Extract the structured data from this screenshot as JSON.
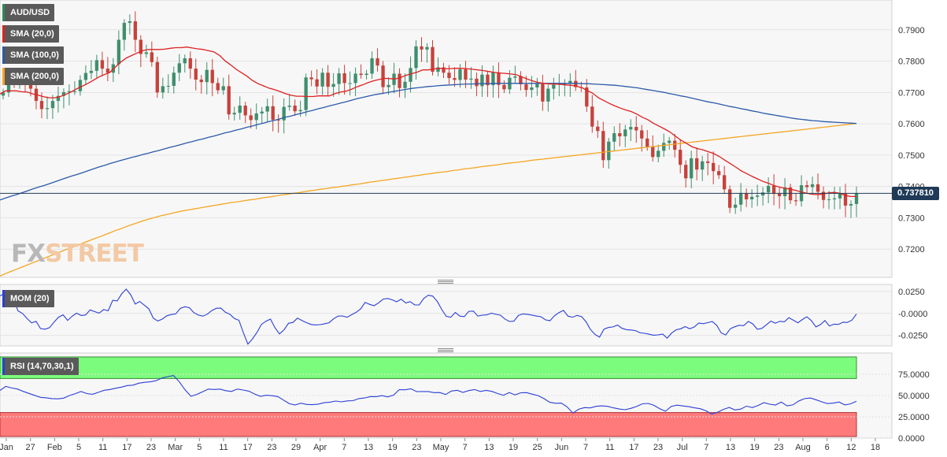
{
  "chart_data": [
    {
      "type": "candlestick",
      "legend": [
        {
          "label": "AUD/USD",
          "color": "#2e8b57"
        },
        {
          "label": "SMA (20,0)",
          "color": "#e02020"
        },
        {
          "label": "SMA (100,0)",
          "color": "#2b5aa8"
        },
        {
          "label": "SMA (200,0)",
          "color": "#f5a623"
        }
      ],
      "ylim": [
        0.711,
        0.7995
      ],
      "y_ticks": [
        "0.7900",
        "0.7800",
        "0.7700",
        "0.7600",
        "0.7500",
        "0.7400",
        "0.7300",
        "0.7200"
      ],
      "last_price": "0.737810",
      "x_ticks": [
        "Jan",
        "27",
        "Feb",
        "5",
        "11",
        "17",
        "23",
        "Mar",
        "5",
        "11",
        "17",
        "23",
        "29",
        "Apr",
        "7",
        "13",
        "19",
        "23",
        "May",
        "7",
        "13",
        "19",
        "25",
        "Jun",
        "7",
        "11",
        "17",
        "23",
        "Jul",
        "7",
        "13",
        "19",
        "23",
        "Aug",
        "6",
        "12",
        "18"
      ],
      "closes": [
        0.77,
        0.7733,
        0.7731,
        0.7735,
        0.7724,
        0.7712,
        0.7673,
        0.7647,
        0.765,
        0.7673,
        0.7689,
        0.7701,
        0.7704,
        0.7704,
        0.774,
        0.7762,
        0.7769,
        0.7803,
        0.7776,
        0.7763,
        0.779,
        0.7868,
        0.7922,
        0.7927,
        0.7868,
        0.7823,
        0.7828,
        0.7797,
        0.77,
        0.772,
        0.7721,
        0.7763,
        0.7793,
        0.7809,
        0.7776,
        0.7741,
        0.7733,
        0.7772,
        0.773,
        0.7707,
        0.772,
        0.763,
        0.7635,
        0.7658,
        0.7627,
        0.7612,
        0.7633,
        0.7639,
        0.7656,
        0.7613,
        0.7611,
        0.7654,
        0.7658,
        0.764,
        0.7644,
        0.7748,
        0.7742,
        0.7719,
        0.7763,
        0.7718,
        0.7727,
        0.7761,
        0.773,
        0.773,
        0.776,
        0.7756,
        0.776,
        0.7809,
        0.7786,
        0.7717,
        0.7724,
        0.776,
        0.7714,
        0.7734,
        0.7778,
        0.7847,
        0.7837,
        0.7845,
        0.7766,
        0.778,
        0.7763,
        0.7746,
        0.774,
        0.7774,
        0.7741,
        0.7744,
        0.772,
        0.7757,
        0.7723,
        0.7764,
        0.7724,
        0.771,
        0.7747,
        0.7751,
        0.7726,
        0.7708,
        0.7716,
        0.7727,
        0.7671,
        0.7712,
        0.7725,
        0.7727,
        0.7728,
        0.7737,
        0.7717,
        0.7716,
        0.7655,
        0.7591,
        0.7577,
        0.7484,
        0.7543,
        0.757,
        0.756,
        0.7582,
        0.759,
        0.7579,
        0.7553,
        0.7526,
        0.7494,
        0.7514,
        0.7539,
        0.7546,
        0.7517,
        0.7469,
        0.7426,
        0.749,
        0.7454,
        0.748,
        0.7475,
        0.7449,
        0.7436,
        0.7391,
        0.7332,
        0.7342,
        0.7379,
        0.7359,
        0.7367,
        0.7371,
        0.7381,
        0.7402,
        0.7377,
        0.7369,
        0.7397,
        0.7356,
        0.7353,
        0.7404,
        0.7398,
        0.7407,
        0.7383,
        0.7357,
        0.7359,
        0.7362,
        0.7379,
        0.7339,
        0.7344,
        0.7378
      ],
      "sma20": [
        0.7695,
        0.7705,
        0.7705,
        0.7705,
        0.7702,
        0.7701,
        0.7695,
        0.7691,
        0.7686,
        0.7683,
        0.7683,
        0.7687,
        0.7694,
        0.7702,
        0.7712,
        0.772,
        0.7729,
        0.7739,
        0.7749,
        0.7757,
        0.7764,
        0.7781,
        0.7797,
        0.781,
        0.7818,
        0.7826,
        0.7833,
        0.7837,
        0.7837,
        0.7837,
        0.7838,
        0.7841,
        0.7843,
        0.7843,
        0.7845,
        0.7842,
        0.7839,
        0.7837,
        0.7833,
        0.7829,
        0.7818,
        0.7801,
        0.7788,
        0.7774,
        0.7763,
        0.7752,
        0.7738,
        0.7728,
        0.7721,
        0.7714,
        0.7709,
        0.7703,
        0.7696,
        0.7691,
        0.7688,
        0.7688,
        0.7687,
        0.7687,
        0.7689,
        0.7689,
        0.7689,
        0.7696,
        0.7701,
        0.7704,
        0.771,
        0.7718,
        0.7724,
        0.7731,
        0.7737,
        0.7741,
        0.7745,
        0.7744,
        0.7743,
        0.7748,
        0.7755,
        0.776,
        0.7765,
        0.7772,
        0.7772,
        0.7775,
        0.7777,
        0.7776,
        0.7776,
        0.7777,
        0.7777,
        0.7776,
        0.7774,
        0.7772,
        0.777,
        0.7767,
        0.7764,
        0.7762,
        0.7761,
        0.7759,
        0.7757,
        0.775,
        0.7743,
        0.7737,
        0.7732,
        0.7729,
        0.7727,
        0.7727,
        0.7726,
        0.7724,
        0.7723,
        0.772,
        0.7715,
        0.7706,
        0.7697,
        0.7683,
        0.7674,
        0.7665,
        0.7657,
        0.765,
        0.7644,
        0.7639,
        0.7631,
        0.7621,
        0.7613,
        0.7602,
        0.7593,
        0.7584,
        0.7574,
        0.7561,
        0.7548,
        0.7538,
        0.7527,
        0.7521,
        0.7517,
        0.7511,
        0.7505,
        0.7496,
        0.7484,
        0.7473,
        0.7462,
        0.745,
        0.7441,
        0.7432,
        0.7424,
        0.7416,
        0.741,
        0.7403,
        0.7398,
        0.7394,
        0.7391,
        0.7387,
        0.7382,
        0.7378,
        0.7375,
        0.7374,
        0.7376,
        0.738,
        0.7381,
        0.7378,
        0.7371,
        0.7368,
        0.7368
      ],
      "sma100": [
        0.7357,
        0.7363,
        0.7369,
        0.7374,
        0.738,
        0.7386,
        0.7392,
        0.7398,
        0.7403,
        0.7409,
        0.7415,
        0.7421,
        0.7427,
        0.7433,
        0.7438,
        0.7444,
        0.745,
        0.7456,
        0.7462,
        0.7467,
        0.7473,
        0.7478,
        0.7483,
        0.7488,
        0.7493,
        0.7497,
        0.7502,
        0.7506,
        0.7511,
        0.7515,
        0.752,
        0.7525,
        0.7529,
        0.7534,
        0.7539,
        0.7543,
        0.7548,
        0.7552,
        0.7557,
        0.7561,
        0.7566,
        0.7571,
        0.7575,
        0.758,
        0.7584,
        0.7589,
        0.7593,
        0.7598,
        0.7602,
        0.7607,
        0.7611,
        0.7616,
        0.7621,
        0.7625,
        0.763,
        0.7634,
        0.7639,
        0.7643,
        0.7648,
        0.7652,
        0.7657,
        0.7661,
        0.7666,
        0.767,
        0.7675,
        0.768,
        0.7684,
        0.7688,
        0.7692,
        0.7695,
        0.7698,
        0.7701,
        0.7704,
        0.7707,
        0.771,
        0.7713,
        0.7715,
        0.7717,
        0.7719,
        0.772,
        0.7722,
        0.7723,
        0.7724,
        0.7725,
        0.7726,
        0.7727,
        0.7727,
        0.7728,
        0.7728,
        0.7728,
        0.7729,
        0.7729,
        0.7729,
        0.7729,
        0.7729,
        0.7729,
        0.7729,
        0.7729,
        0.7729,
        0.7729,
        0.7729,
        0.7729,
        0.7729,
        0.7729,
        0.7729,
        0.7729,
        0.7728,
        0.7728,
        0.7727,
        0.7726,
        0.7725,
        0.7724,
        0.7723,
        0.7721,
        0.7719,
        0.7717,
        0.7715,
        0.7712,
        0.7709,
        0.7706,
        0.7703,
        0.77,
        0.7696,
        0.7693,
        0.7689,
        0.7686,
        0.7682,
        0.7678,
        0.7674,
        0.767,
        0.7667,
        0.7663,
        0.7659,
        0.7655,
        0.7652,
        0.7648,
        0.7645,
        0.7641,
        0.7638,
        0.7634,
        0.7631,
        0.7628,
        0.7625,
        0.7622,
        0.7619,
        0.7616,
        0.7614,
        0.7612,
        0.761,
        0.7609,
        0.7607,
        0.7606,
        0.7605,
        0.7604,
        0.7603,
        0.7602,
        0.7601
      ],
      "sma200": [
        0.7114,
        0.7122,
        0.7129,
        0.7136,
        0.7143,
        0.715,
        0.7157,
        0.7164,
        0.7171,
        0.7178,
        0.7185,
        0.7192,
        0.7199,
        0.7205,
        0.7212,
        0.7219,
        0.7226,
        0.7233,
        0.7239,
        0.7246,
        0.7253,
        0.726,
        0.7266,
        0.7273,
        0.7279,
        0.7285,
        0.7291,
        0.7296,
        0.7301,
        0.7306,
        0.731,
        0.7314,
        0.7318,
        0.7322,
        0.7325,
        0.7328,
        0.7331,
        0.7334,
        0.7337,
        0.734,
        0.7343,
        0.7346,
        0.7349,
        0.7351,
        0.7354,
        0.7357,
        0.7359,
        0.7362,
        0.7365,
        0.7367,
        0.737,
        0.7373,
        0.7375,
        0.7378,
        0.738,
        0.7383,
        0.7386,
        0.7388,
        0.7391,
        0.7393,
        0.7396,
        0.7398,
        0.7401,
        0.7403,
        0.7406,
        0.7408,
        0.7411,
        0.7414,
        0.7416,
        0.7419,
        0.7421,
        0.7424,
        0.7426,
        0.7429,
        0.7431,
        0.7434,
        0.7436,
        0.7439,
        0.7441,
        0.7444,
        0.7446,
        0.7448,
        0.7451,
        0.7453,
        0.7456,
        0.7458,
        0.746,
        0.7463,
        0.7465,
        0.7467,
        0.7469,
        0.7472,
        0.7474,
        0.7476,
        0.7478,
        0.748,
        0.7483,
        0.7485,
        0.7487,
        0.7489,
        0.7491,
        0.7493,
        0.7495,
        0.7497,
        0.7499,
        0.7501,
        0.7503,
        0.7505,
        0.7507,
        0.7509,
        0.7511,
        0.7513,
        0.7515,
        0.7517,
        0.7519,
        0.7521,
        0.7523,
        0.7525,
        0.7527,
        0.7529,
        0.7531,
        0.7533,
        0.7535,
        0.7537,
        0.7539,
        0.7541,
        0.7543,
        0.7545,
        0.7547,
        0.7549,
        0.7551,
        0.7553,
        0.7555,
        0.7557,
        0.7559,
        0.7561,
        0.7563,
        0.7565,
        0.7567,
        0.7569,
        0.7571,
        0.7573,
        0.7575,
        0.7577,
        0.7579,
        0.7581,
        0.7583,
        0.7585,
        0.7587,
        0.7589,
        0.7591,
        0.7593,
        0.7595,
        0.7597,
        0.7599,
        0.7601
      ]
    },
    {
      "type": "line",
      "legend": [
        {
          "label": "MOM (20)",
          "color": "#2b3fd6"
        }
      ],
      "ylim": [
        -0.037,
        0.033
      ],
      "y_ticks": [
        "0.0250",
        "-0.0000",
        "-0.0250"
      ],
      "values": [
        0.0199,
        0.0229,
        0.0211,
        0.0153,
        0.0029,
        0.0,
        -0.0059,
        -0.0108,
        -0.009,
        -0.0173,
        -0.018,
        -0.0162,
        -0.0098,
        -0.0042,
        -0.0016,
        -0.0079,
        -0.0033,
        0.0003,
        -0.0024,
        -0.0017,
        0.004,
        0.002,
        0.0003,
        0.0044,
        0.003,
        0.015,
        0.0142,
        0.0223,
        0.0277,
        0.0212,
        0.0107,
        0.0136,
        0.0095,
        0.0053,
        -0.0053,
        -0.0086,
        -0.0065,
        -0.0027,
        -0.0013,
        -0.0005,
        0.0057,
        0.0076,
        0.0065,
        0.001,
        -0.0019,
        -0.0031,
        -0.0008,
        0.0033,
        0.0059,
        0.006,
        0.0013,
        -0.0009,
        -0.0059,
        -0.0078,
        -0.0221,
        -0.0349,
        -0.029,
        -0.0217,
        -0.0125,
        -0.0088,
        -0.0065,
        -0.0164,
        -0.0234,
        -0.0187,
        -0.0112,
        -0.0103,
        -0.0053,
        -0.0082,
        -0.0105,
        -0.0126,
        -0.0131,
        -0.0128,
        -0.0118,
        -0.0106,
        -0.0062,
        -0.0031,
        -0.0029,
        -0.0044,
        -0.0015,
        0.0012,
        0.0051,
        0.0125,
        0.0103,
        0.0088,
        0.0121,
        0.0163,
        0.017,
        0.0155,
        0.0133,
        0.0162,
        0.0119,
        0.0134,
        0.0098,
        0.0097,
        0.017,
        0.0207,
        0.0197,
        0.0137,
        0.0044,
        -0.0033,
        -0.0044,
        0.0011,
        -0.0031,
        -0.0036,
        0.0024,
        0.0027,
        -0.0031,
        -0.002,
        -0.0016,
        0.0002,
        -0.001,
        -0.002,
        -0.0063,
        -0.0092,
        -0.0088,
        -0.0024,
        -0.0006,
        -0.001,
        -0.0019,
        -0.003,
        -0.0038,
        -0.0073,
        -0.0084,
        -0.0027,
        0.001,
        0.0035,
        -0.0031,
        -0.0043,
        -0.0023,
        -0.0035,
        -0.0094,
        -0.0183,
        -0.024,
        -0.027,
        -0.0179,
        -0.016,
        -0.0154,
        -0.0132,
        -0.017,
        -0.0185,
        -0.0189,
        -0.0196,
        -0.0221,
        -0.0226,
        -0.0237,
        -0.0248,
        -0.0244,
        -0.0235,
        -0.0282,
        -0.0224,
        -0.0186,
        -0.0175,
        -0.015,
        -0.0175,
        -0.0155,
        -0.011,
        -0.0117,
        -0.0105,
        -0.0092,
        -0.0136,
        -0.0223,
        -0.0245,
        -0.0175,
        -0.0152,
        -0.0135,
        -0.0139,
        -0.0091,
        -0.012,
        -0.0181,
        -0.0171,
        -0.013,
        -0.0087,
        -0.0111,
        -0.009,
        -0.0095,
        -0.0049,
        -0.0077,
        -0.0107,
        -0.0069,
        -0.0038,
        -0.0082,
        -0.0154,
        -0.0128,
        -0.0081,
        -0.0143,
        -0.0122,
        -0.0125,
        -0.01,
        -0.0103,
        -0.0076,
        -0.0007
      ]
    },
    {
      "type": "line",
      "legend": [
        {
          "label": "RSI (14,70,30,1)",
          "color": "#2b3fd6"
        }
      ],
      "ylim": [
        0,
        100
      ],
      "y_ticks": [
        "75.0000",
        "50.0000",
        "25.0000",
        "0.0000"
      ],
      "overbought": 70,
      "oversold": 30,
      "zone_colors": {
        "overbought": "#7cfc7c",
        "oversold": "#ff7b7b"
      },
      "values": [
        56.0,
        60.7,
        58.9,
        57.7,
        54.9,
        52.5,
        50.2,
        47.9,
        47.3,
        46.4,
        46.1,
        46.9,
        50.0,
        52.2,
        54.8,
        52.3,
        51.5,
        53.8,
        56.2,
        57.1,
        58.6,
        59.9,
        61.8,
        62.2,
        64.5,
        65.6,
        66.1,
        67.5,
        70.6,
        72.2,
        73.5,
        65.9,
        56.6,
        49.2,
        51.3,
        54.4,
        57.6,
        57.1,
        57.6,
        55.7,
        54.8,
        57.6,
        56.5,
        55.2,
        51.8,
        49.1,
        50.4,
        49.8,
        48.8,
        44.6,
        40.4,
        39.0,
        41.0,
        39.5,
        39.3,
        39.9,
        41.6,
        42.2,
        43.5,
        42.6,
        43.7,
        44.0,
        46.4,
        47.1,
        48.8,
        48.7,
        49.9,
        48.4,
        50.5,
        56.9,
        56.8,
        58.0,
        54.6,
        54.7,
        54.7,
        53.4,
        53.5,
        51.2,
        55.3,
        56.2,
        53.7,
        55.8,
        57.0,
        54.8,
        56.1,
        54.9,
        52.3,
        50.4,
        53.5,
        50.7,
        53.2,
        53.4,
        51.6,
        49.9,
        46.4,
        42.0,
        40.9,
        41.1,
        36.7,
        29.4,
        33.9,
        35.8,
        35.5,
        37.3,
        37.9,
        37.3,
        35.6,
        34.2,
        33.3,
        34.9,
        37.1,
        40.3,
        40.7,
        38.5,
        34.5,
        31.6,
        37.3,
        38.7,
        37.8,
        36.9,
        35.6,
        34.5,
        32.0,
        28.2,
        30.4,
        33.7,
        36.0,
        33.1,
        34.1,
        37.6,
        35.8,
        38.3,
        41.7,
        39.8,
        38.9,
        42.3,
        37.9,
        39.0,
        43.5,
        46.3,
        47.1,
        45.1,
        42.6,
        40.6,
        41.1,
        42.4,
        39.0,
        40.3,
        43.2
      ]
    }
  ],
  "watermark": {
    "fx": "FX",
    "street": "STREET"
  }
}
